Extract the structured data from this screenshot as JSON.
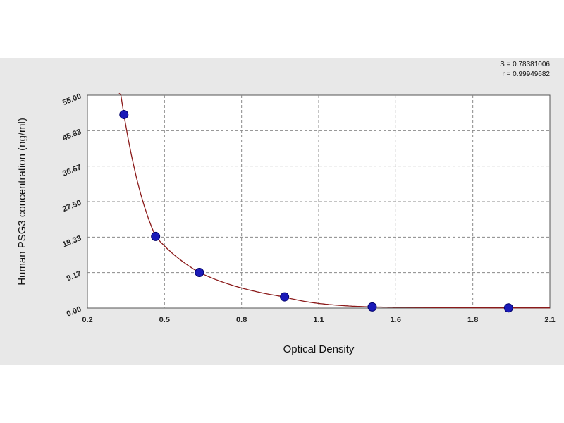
{
  "chart_data": {
    "type": "scatter",
    "xlabel": "Optical Density",
    "ylabel": "Human PSG3 concentration (ng/ml)",
    "x_ticks": [
      "0.2",
      "0.5",
      "0.8",
      "1.1",
      "1.6",
      "1.8",
      "2.1"
    ],
    "y_ticks": [
      "0.00",
      "9.17",
      "18.33",
      "27.50",
      "36.67",
      "45.83",
      "55.00"
    ],
    "xlim": [
      0.2,
      2.1
    ],
    "ylim": [
      0,
      55
    ],
    "grid": true,
    "stats": [
      "S = 0.78381006",
      "r = 0.99949682"
    ],
    "series": [
      {
        "points": [
          {
            "x": 0.35,
            "y": 50.0
          },
          {
            "x": 0.48,
            "y": 18.5
          },
          {
            "x": 0.66,
            "y": 9.2
          },
          {
            "x": 1.01,
            "y": 2.9
          },
          {
            "x": 1.37,
            "y": 0.3
          },
          {
            "x": 1.93,
            "y": 0.05
          }
        ]
      }
    ],
    "colors": {
      "point": "#1a1ab8",
      "point_edge": "#00006a",
      "curve": "#8b1a1a",
      "grid": "#8a8a8a",
      "plot_bg": "#ffffff"
    }
  }
}
